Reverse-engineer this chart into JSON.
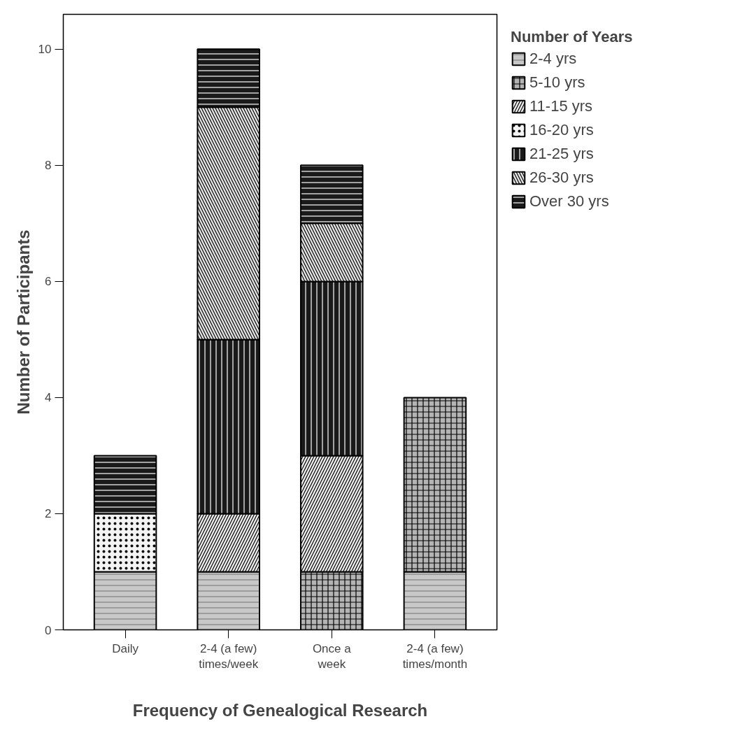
{
  "chart_data": {
    "type": "bar",
    "stacked": true,
    "xlabel": "Frequency of Genealogical Research",
    "ylabel": "Number of Participants",
    "legend_title": "Number of Years",
    "categories": [
      "Daily",
      "2-4 (a few)\ntimes/week",
      "Once a\nweek",
      "2-4 (a few)\ntimes/month"
    ],
    "series": [
      {
        "name": "2-4 yrs",
        "color": "#c8c8c8",
        "values": [
          1,
          1,
          null,
          1
        ]
      },
      {
        "name": "5-10 yrs",
        "color": "#b4b4b4",
        "values": [
          null,
          null,
          1,
          3
        ]
      },
      {
        "name": "11-15 yrs",
        "color": "#ececec",
        "values": [
          null,
          1,
          2,
          null
        ]
      },
      {
        "name": "16-20 yrs",
        "color": "#f4f4f4",
        "values": [
          1,
          null,
          null,
          null
        ]
      },
      {
        "name": "21-25 yrs",
        "color": "#1a1a1a",
        "values": [
          null,
          3,
          3,
          null
        ]
      },
      {
        "name": "26-30 yrs",
        "color": "#e4e4e4",
        "values": [
          null,
          4,
          1,
          null
        ]
      },
      {
        "name": "Over 30 yrs",
        "color": "#1a1a1a",
        "values": [
          1,
          1,
          1,
          null
        ]
      }
    ],
    "ylim": [
      0,
      10.6
    ],
    "yticks": [
      0,
      2,
      4,
      6,
      8,
      10
    ],
    "legend": "right"
  }
}
